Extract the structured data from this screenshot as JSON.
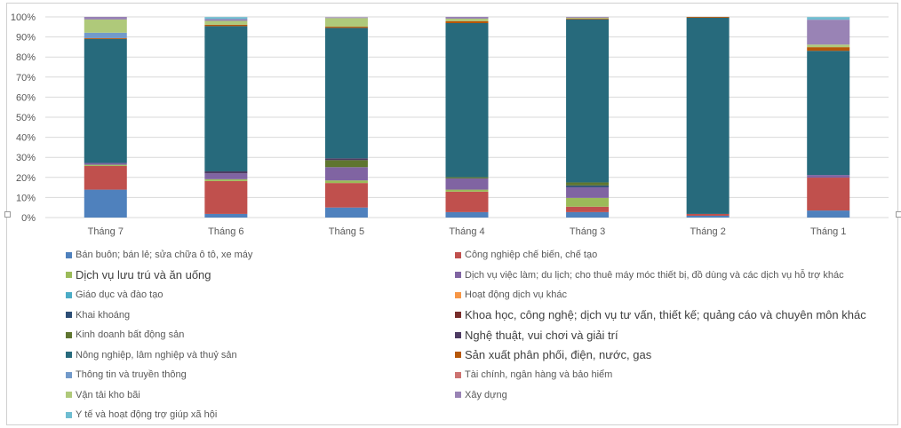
{
  "chart_data": {
    "type": "bar",
    "stacked": "percent",
    "title": "",
    "xlabel": "",
    "ylabel": "",
    "ylim": [
      0,
      100
    ],
    "y_ticks": [
      "0%",
      "10%",
      "20%",
      "30%",
      "40%",
      "50%",
      "60%",
      "70%",
      "80%",
      "90%",
      "100%"
    ],
    "grid": true,
    "legend_placement": "bottom",
    "categories": [
      "Tháng 7",
      "Tháng 6",
      "Tháng 5",
      "Tháng 4",
      "Tháng 3",
      "Tháng 2",
      "Tháng 1"
    ],
    "series": [
      {
        "name": "Bán buôn; bán lẻ; sửa chữa ô tô, xe máy",
        "color": "#4F81BD",
        "values": [
          13.9,
          1.8,
          5.0,
          2.7,
          2.7,
          0.9,
          3.5
        ]
      },
      {
        "name": "Công nghiệp chế biến, chế tạo",
        "color": "#C0504D",
        "values": [
          11.8,
          16.4,
          12.2,
          10.2,
          2.7,
          0.9,
          16.4
        ]
      },
      {
        "name": "Dịch vụ lưu trú và ăn uống",
        "color": "#9BBB59",
        "values": [
          0.6,
          0.9,
          1.3,
          1.0,
          4.4,
          0,
          0
        ]
      },
      {
        "name": "Dịch vụ việc làm; du lịch; cho thuê máy móc thiết bị, đồ dùng và các dịch vụ hỗ trợ khác",
        "color": "#8064A2",
        "values": [
          0.9,
          2.9,
          6.6,
          5.6,
          5.3,
          0,
          1.3
        ]
      },
      {
        "name": "Giáo dục và đào tạo",
        "color": "#4BACC6",
        "values": [
          0,
          0,
          0,
          0,
          0,
          0,
          0
        ]
      },
      {
        "name": "Hoạt động dịch vụ khác",
        "color": "#F79646",
        "values": [
          0,
          0,
          0,
          0,
          0,
          0,
          0
        ]
      },
      {
        "name": "Khai khoáng",
        "color": "#2C4D75",
        "values": [
          0,
          0,
          0,
          0,
          0.9,
          0,
          0
        ]
      },
      {
        "name": "Khoa học, công nghệ; dịch vụ tư vấn, thiết kế; quảng cáo và chuyên môn khác",
        "color": "#772C2A",
        "values": [
          0,
          0,
          0,
          0,
          0,
          0,
          0
        ]
      },
      {
        "name": "Kinh doanh bất động sản",
        "color": "#5F7530",
        "values": [
          0,
          0,
          3.5,
          0.6,
          1.5,
          0,
          0
        ]
      },
      {
        "name": "Nghệ thuật, vui chơi và giải trí",
        "color": "#4D3B62",
        "values": [
          0,
          1.0,
          0.9,
          0,
          0,
          0,
          0
        ]
      },
      {
        "name": "Nông nghiệp, lâm nghiệp và thuỷ sản",
        "color": "#276A7C",
        "values": [
          61.8,
          72.4,
          65.0,
          76.8,
          81.3,
          97.8,
          61.9
        ]
      },
      {
        "name": "Sản xuất phân phối, điện, nước, gas",
        "color": "#B65708",
        "values": [
          0.4,
          0.7,
          0.6,
          1.0,
          0.4,
          0.4,
          1.8
        ]
      },
      {
        "name": "Thông tin và truyền thông",
        "color": "#729ACA",
        "values": [
          2.7,
          0,
          0,
          0,
          0,
          0,
          0
        ]
      },
      {
        "name": "Tài chính, ngân hàng và bảo hiểm",
        "color": "#CD7371",
        "values": [
          0,
          0,
          0,
          0,
          0,
          0,
          0
        ]
      },
      {
        "name": "Vận tải kho bãi",
        "color": "#AFC97A",
        "values": [
          6.6,
          1.9,
          4.3,
          1.2,
          0.4,
          0,
          1.3
        ]
      },
      {
        "name": "Xây dựng",
        "color": "#9983B5",
        "values": [
          1.3,
          0.9,
          0.4,
          0.9,
          0.4,
          0,
          12.4
        ]
      },
      {
        "name": "Y tế và hoạt động trợ giúp xã hội",
        "color": "#6FBDD1",
        "values": [
          0,
          1.0,
          0,
          0,
          0,
          0,
          1.3
        ]
      }
    ]
  }
}
